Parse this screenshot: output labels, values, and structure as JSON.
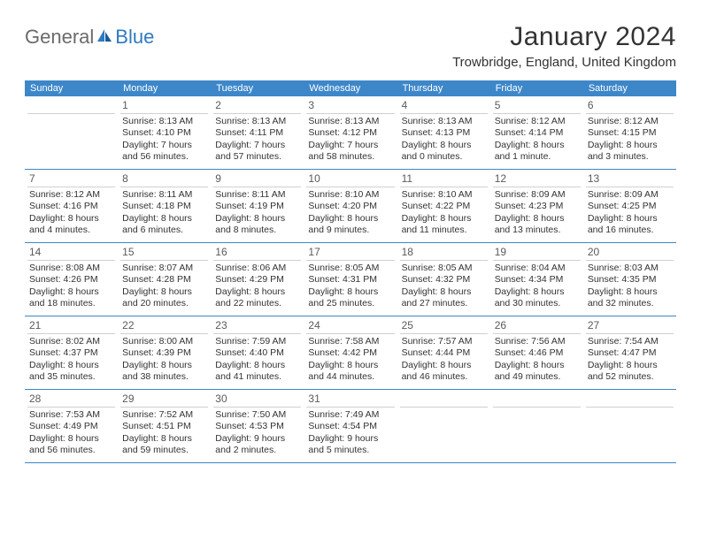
{
  "logo": {
    "text_general": "General",
    "text_blue": "Blue"
  },
  "title": "January 2024",
  "location": "Trowbridge, England, United Kingdom",
  "colors": {
    "header_bg": "#3d87c9",
    "header_text": "#ffffff",
    "divider": "#3d87c9",
    "day_divider": "#d0d0d0",
    "text": "#333333",
    "logo_blue": "#2f7ac0",
    "logo_gray": "#6b6b6b"
  },
  "weekdays": [
    "Sunday",
    "Monday",
    "Tuesday",
    "Wednesday",
    "Thursday",
    "Friday",
    "Saturday"
  ],
  "weeks": [
    [
      {
        "n": "",
        "empty": true
      },
      {
        "n": "1",
        "sr": "Sunrise: 8:13 AM",
        "ss": "Sunset: 4:10 PM",
        "d1": "Daylight: 7 hours",
        "d2": "and 56 minutes."
      },
      {
        "n": "2",
        "sr": "Sunrise: 8:13 AM",
        "ss": "Sunset: 4:11 PM",
        "d1": "Daylight: 7 hours",
        "d2": "and 57 minutes."
      },
      {
        "n": "3",
        "sr": "Sunrise: 8:13 AM",
        "ss": "Sunset: 4:12 PM",
        "d1": "Daylight: 7 hours",
        "d2": "and 58 minutes."
      },
      {
        "n": "4",
        "sr": "Sunrise: 8:13 AM",
        "ss": "Sunset: 4:13 PM",
        "d1": "Daylight: 8 hours",
        "d2": "and 0 minutes."
      },
      {
        "n": "5",
        "sr": "Sunrise: 8:12 AM",
        "ss": "Sunset: 4:14 PM",
        "d1": "Daylight: 8 hours",
        "d2": "and 1 minute."
      },
      {
        "n": "6",
        "sr": "Sunrise: 8:12 AM",
        "ss": "Sunset: 4:15 PM",
        "d1": "Daylight: 8 hours",
        "d2": "and 3 minutes."
      }
    ],
    [
      {
        "n": "7",
        "sr": "Sunrise: 8:12 AM",
        "ss": "Sunset: 4:16 PM",
        "d1": "Daylight: 8 hours",
        "d2": "and 4 minutes."
      },
      {
        "n": "8",
        "sr": "Sunrise: 8:11 AM",
        "ss": "Sunset: 4:18 PM",
        "d1": "Daylight: 8 hours",
        "d2": "and 6 minutes."
      },
      {
        "n": "9",
        "sr": "Sunrise: 8:11 AM",
        "ss": "Sunset: 4:19 PM",
        "d1": "Daylight: 8 hours",
        "d2": "and 8 minutes."
      },
      {
        "n": "10",
        "sr": "Sunrise: 8:10 AM",
        "ss": "Sunset: 4:20 PM",
        "d1": "Daylight: 8 hours",
        "d2": "and 9 minutes."
      },
      {
        "n": "11",
        "sr": "Sunrise: 8:10 AM",
        "ss": "Sunset: 4:22 PM",
        "d1": "Daylight: 8 hours",
        "d2": "and 11 minutes."
      },
      {
        "n": "12",
        "sr": "Sunrise: 8:09 AM",
        "ss": "Sunset: 4:23 PM",
        "d1": "Daylight: 8 hours",
        "d2": "and 13 minutes."
      },
      {
        "n": "13",
        "sr": "Sunrise: 8:09 AM",
        "ss": "Sunset: 4:25 PM",
        "d1": "Daylight: 8 hours",
        "d2": "and 16 minutes."
      }
    ],
    [
      {
        "n": "14",
        "sr": "Sunrise: 8:08 AM",
        "ss": "Sunset: 4:26 PM",
        "d1": "Daylight: 8 hours",
        "d2": "and 18 minutes."
      },
      {
        "n": "15",
        "sr": "Sunrise: 8:07 AM",
        "ss": "Sunset: 4:28 PM",
        "d1": "Daylight: 8 hours",
        "d2": "and 20 minutes."
      },
      {
        "n": "16",
        "sr": "Sunrise: 8:06 AM",
        "ss": "Sunset: 4:29 PM",
        "d1": "Daylight: 8 hours",
        "d2": "and 22 minutes."
      },
      {
        "n": "17",
        "sr": "Sunrise: 8:05 AM",
        "ss": "Sunset: 4:31 PM",
        "d1": "Daylight: 8 hours",
        "d2": "and 25 minutes."
      },
      {
        "n": "18",
        "sr": "Sunrise: 8:05 AM",
        "ss": "Sunset: 4:32 PM",
        "d1": "Daylight: 8 hours",
        "d2": "and 27 minutes."
      },
      {
        "n": "19",
        "sr": "Sunrise: 8:04 AM",
        "ss": "Sunset: 4:34 PM",
        "d1": "Daylight: 8 hours",
        "d2": "and 30 minutes."
      },
      {
        "n": "20",
        "sr": "Sunrise: 8:03 AM",
        "ss": "Sunset: 4:35 PM",
        "d1": "Daylight: 8 hours",
        "d2": "and 32 minutes."
      }
    ],
    [
      {
        "n": "21",
        "sr": "Sunrise: 8:02 AM",
        "ss": "Sunset: 4:37 PM",
        "d1": "Daylight: 8 hours",
        "d2": "and 35 minutes."
      },
      {
        "n": "22",
        "sr": "Sunrise: 8:00 AM",
        "ss": "Sunset: 4:39 PM",
        "d1": "Daylight: 8 hours",
        "d2": "and 38 minutes."
      },
      {
        "n": "23",
        "sr": "Sunrise: 7:59 AM",
        "ss": "Sunset: 4:40 PM",
        "d1": "Daylight: 8 hours",
        "d2": "and 41 minutes."
      },
      {
        "n": "24",
        "sr": "Sunrise: 7:58 AM",
        "ss": "Sunset: 4:42 PM",
        "d1": "Daylight: 8 hours",
        "d2": "and 44 minutes."
      },
      {
        "n": "25",
        "sr": "Sunrise: 7:57 AM",
        "ss": "Sunset: 4:44 PM",
        "d1": "Daylight: 8 hours",
        "d2": "and 46 minutes."
      },
      {
        "n": "26",
        "sr": "Sunrise: 7:56 AM",
        "ss": "Sunset: 4:46 PM",
        "d1": "Daylight: 8 hours",
        "d2": "and 49 minutes."
      },
      {
        "n": "27",
        "sr": "Sunrise: 7:54 AM",
        "ss": "Sunset: 4:47 PM",
        "d1": "Daylight: 8 hours",
        "d2": "and 52 minutes."
      }
    ],
    [
      {
        "n": "28",
        "sr": "Sunrise: 7:53 AM",
        "ss": "Sunset: 4:49 PM",
        "d1": "Daylight: 8 hours",
        "d2": "and 56 minutes."
      },
      {
        "n": "29",
        "sr": "Sunrise: 7:52 AM",
        "ss": "Sunset: 4:51 PM",
        "d1": "Daylight: 8 hours",
        "d2": "and 59 minutes."
      },
      {
        "n": "30",
        "sr": "Sunrise: 7:50 AM",
        "ss": "Sunset: 4:53 PM",
        "d1": "Daylight: 9 hours",
        "d2": "and 2 minutes."
      },
      {
        "n": "31",
        "sr": "Sunrise: 7:49 AM",
        "ss": "Sunset: 4:54 PM",
        "d1": "Daylight: 9 hours",
        "d2": "and 5 minutes."
      },
      {
        "n": "",
        "empty": true
      },
      {
        "n": "",
        "empty": true
      },
      {
        "n": "",
        "empty": true
      }
    ]
  ]
}
